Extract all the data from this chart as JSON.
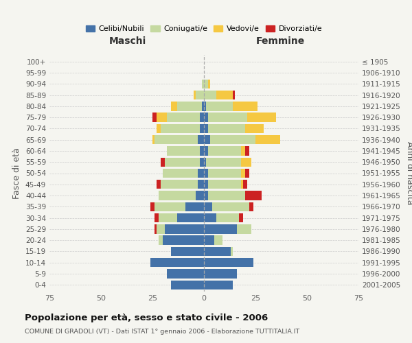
{
  "age_groups": [
    "0-4",
    "5-9",
    "10-14",
    "15-19",
    "20-24",
    "25-29",
    "30-34",
    "35-39",
    "40-44",
    "45-49",
    "50-54",
    "55-59",
    "60-64",
    "65-69",
    "70-74",
    "75-79",
    "80-84",
    "85-89",
    "90-94",
    "95-99",
    "100+"
  ],
  "birth_years": [
    "2001-2005",
    "1996-2000",
    "1991-1995",
    "1986-1990",
    "1981-1985",
    "1976-1980",
    "1971-1975",
    "1966-1970",
    "1961-1965",
    "1956-1960",
    "1951-1955",
    "1946-1950",
    "1941-1945",
    "1936-1940",
    "1931-1935",
    "1926-1930",
    "1921-1925",
    "1916-1920",
    "1911-1915",
    "1906-1910",
    "≤ 1905"
  ],
  "males": {
    "celibi": [
      16,
      18,
      26,
      16,
      20,
      19,
      13,
      9,
      4,
      3,
      3,
      2,
      2,
      3,
      2,
      2,
      1,
      0,
      0,
      0,
      0
    ],
    "coniugati": [
      0,
      0,
      0,
      0,
      2,
      4,
      9,
      15,
      18,
      18,
      17,
      17,
      16,
      21,
      19,
      16,
      12,
      4,
      1,
      0,
      0
    ],
    "vedovi": [
      0,
      0,
      0,
      0,
      0,
      0,
      0,
      0,
      0,
      0,
      0,
      0,
      0,
      1,
      2,
      5,
      3,
      1,
      0,
      0,
      0
    ],
    "divorziati": [
      0,
      0,
      0,
      0,
      0,
      1,
      2,
      2,
      0,
      2,
      0,
      2,
      0,
      0,
      0,
      2,
      0,
      0,
      0,
      0,
      0
    ]
  },
  "females": {
    "nubili": [
      14,
      16,
      24,
      13,
      5,
      16,
      6,
      4,
      2,
      2,
      2,
      1,
      2,
      3,
      2,
      2,
      1,
      0,
      0,
      0,
      0
    ],
    "coniugate": [
      0,
      0,
      0,
      1,
      4,
      7,
      11,
      18,
      18,
      16,
      16,
      17,
      16,
      22,
      18,
      19,
      13,
      6,
      2,
      0,
      0
    ],
    "vedove": [
      0,
      0,
      0,
      0,
      0,
      0,
      0,
      0,
      0,
      1,
      2,
      5,
      2,
      12,
      9,
      14,
      12,
      8,
      1,
      0,
      0
    ],
    "divorziate": [
      0,
      0,
      0,
      0,
      0,
      0,
      2,
      2,
      8,
      2,
      2,
      0,
      2,
      0,
      0,
      0,
      0,
      1,
      0,
      0,
      0
    ]
  },
  "colors": {
    "celibi": "#4472a8",
    "coniugati": "#c5d9a0",
    "vedovi": "#f5c842",
    "divorziati": "#cc2222"
  },
  "xlim": 75,
  "title": "Popolazione per età, sesso e stato civile - 2006",
  "subtitle": "COMUNE DI GRADOLI (VT) - Dati ISTAT 1° gennaio 2006 - Elaborazione TUTTITALIA.IT",
  "xlabel_left": "Maschi",
  "xlabel_right": "Femmine",
  "ylabel_left": "Fasce di età",
  "ylabel_right": "Anni di nascita",
  "bg_color": "#f5f5f0",
  "grid_color": "#cccccc"
}
